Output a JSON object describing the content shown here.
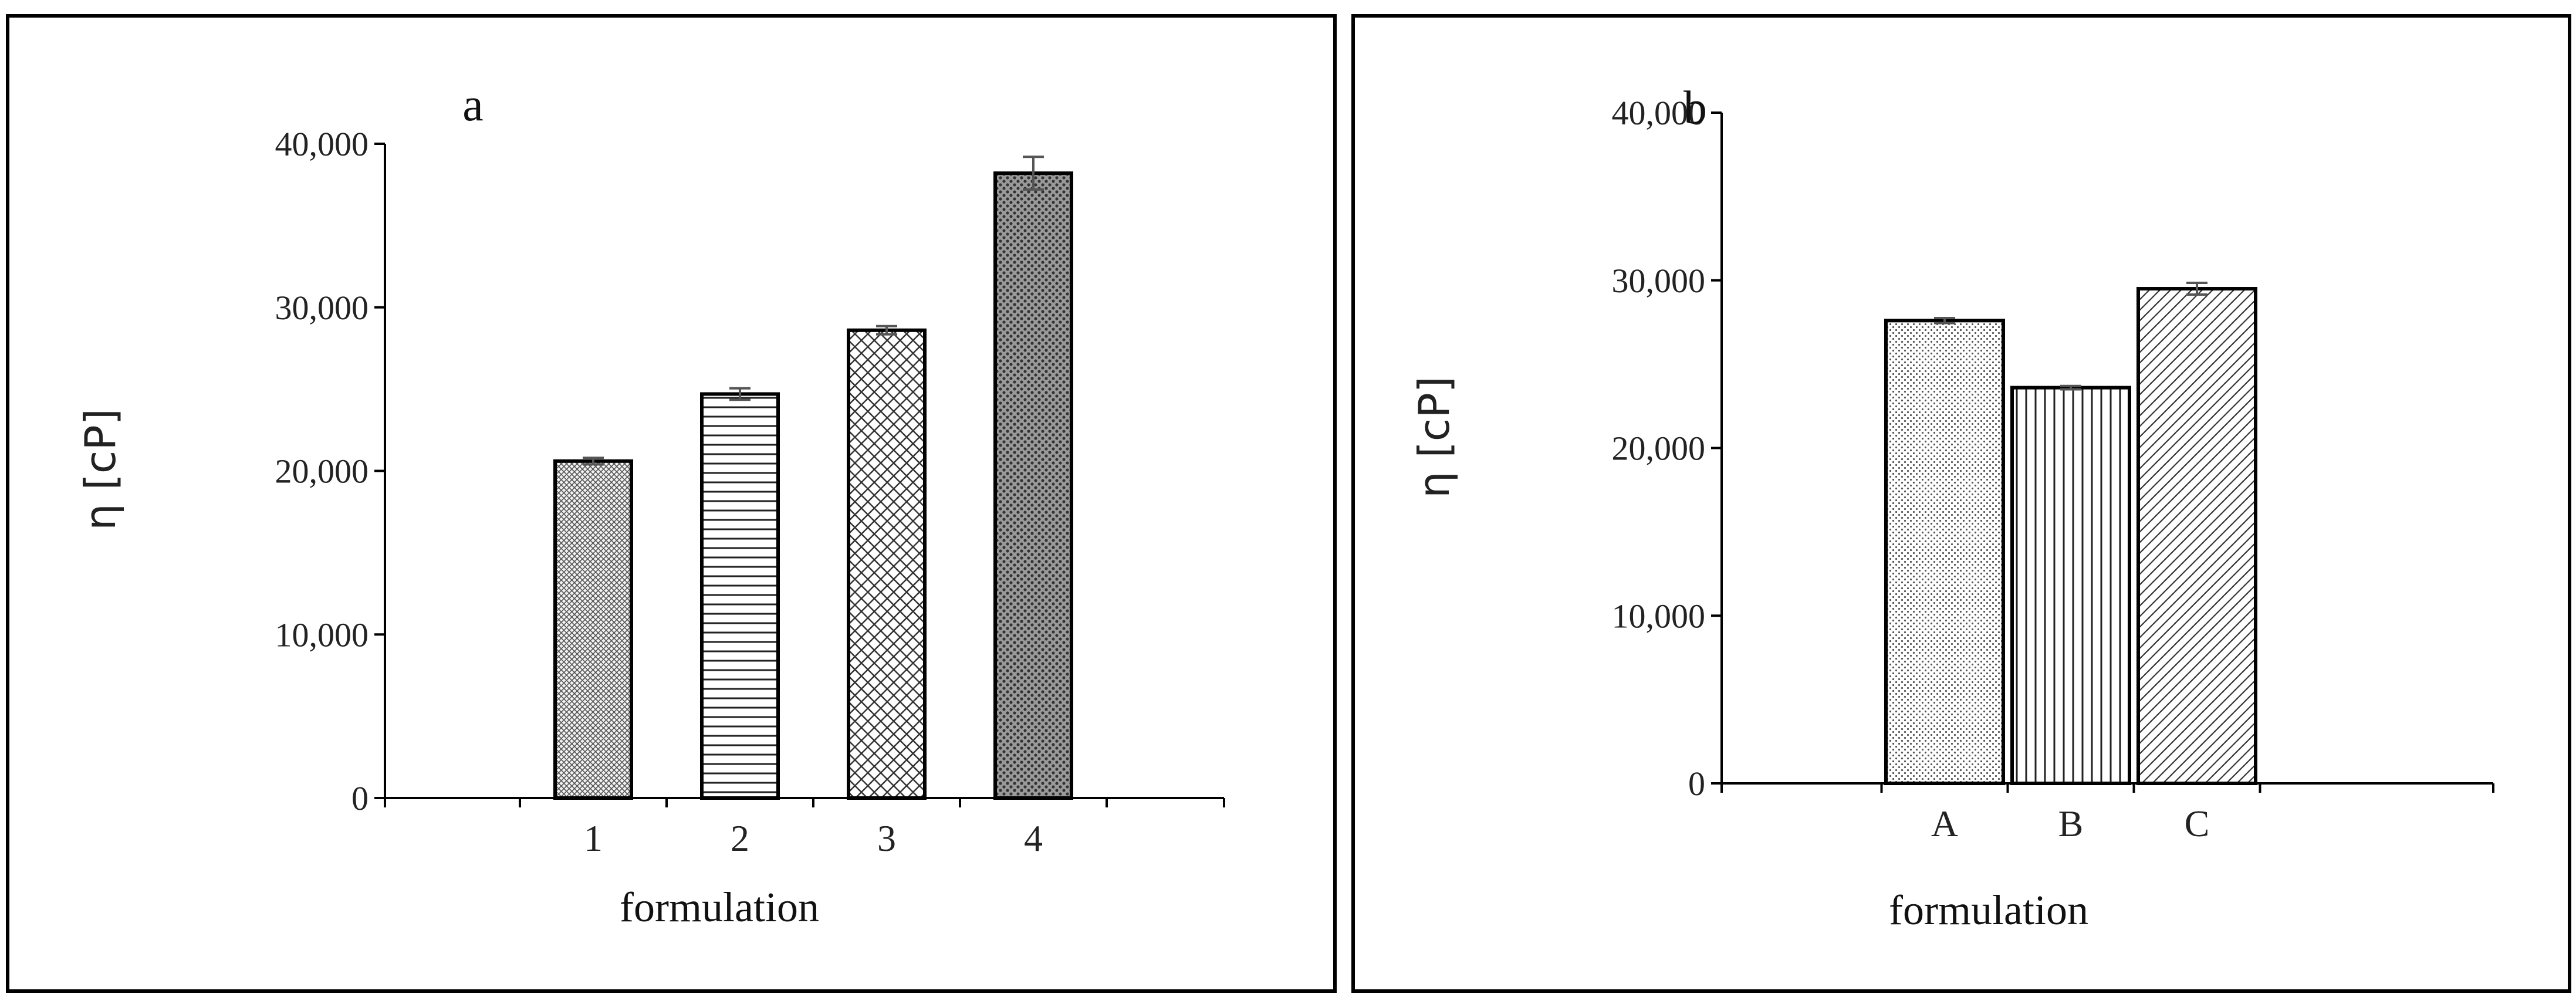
{
  "chart_data": [
    {
      "type": "bar",
      "panel_label": "a",
      "categories": [
        "1",
        "2",
        "3",
        "4"
      ],
      "values": [
        20600,
        24700,
        28600,
        38200
      ],
      "errors": [
        200,
        350,
        250,
        1000
      ],
      "patterns": [
        "pat-a1",
        "pat-a2",
        "pat-a3",
        "pat-a4"
      ],
      "xlabel": "formulation",
      "ylabel": "η [cP]",
      "ylim": [
        0,
        40000
      ],
      "yticks": [
        0,
        10000,
        20000,
        30000,
        40000
      ],
      "ytick_labels": [
        "0",
        "10,000",
        "20,000",
        "30,000",
        "40,000"
      ],
      "grid": false
    },
    {
      "type": "bar",
      "panel_label": "b",
      "categories": [
        "A",
        "B",
        "C"
      ],
      "values": [
        27600,
        23600,
        29500
      ],
      "errors": [
        150,
        100,
        350
      ],
      "patterns": [
        "pat-b1",
        "pat-b2",
        "pat-b3"
      ],
      "xlabel": "formulation",
      "ylabel": "η [cP]",
      "ylim": [
        0,
        40000
      ],
      "yticks": [
        0,
        10000,
        20000,
        30000,
        40000
      ],
      "ytick_labels": [
        "0",
        "10,000",
        "20,000",
        "30,000",
        "40,000"
      ],
      "grid": false
    }
  ]
}
